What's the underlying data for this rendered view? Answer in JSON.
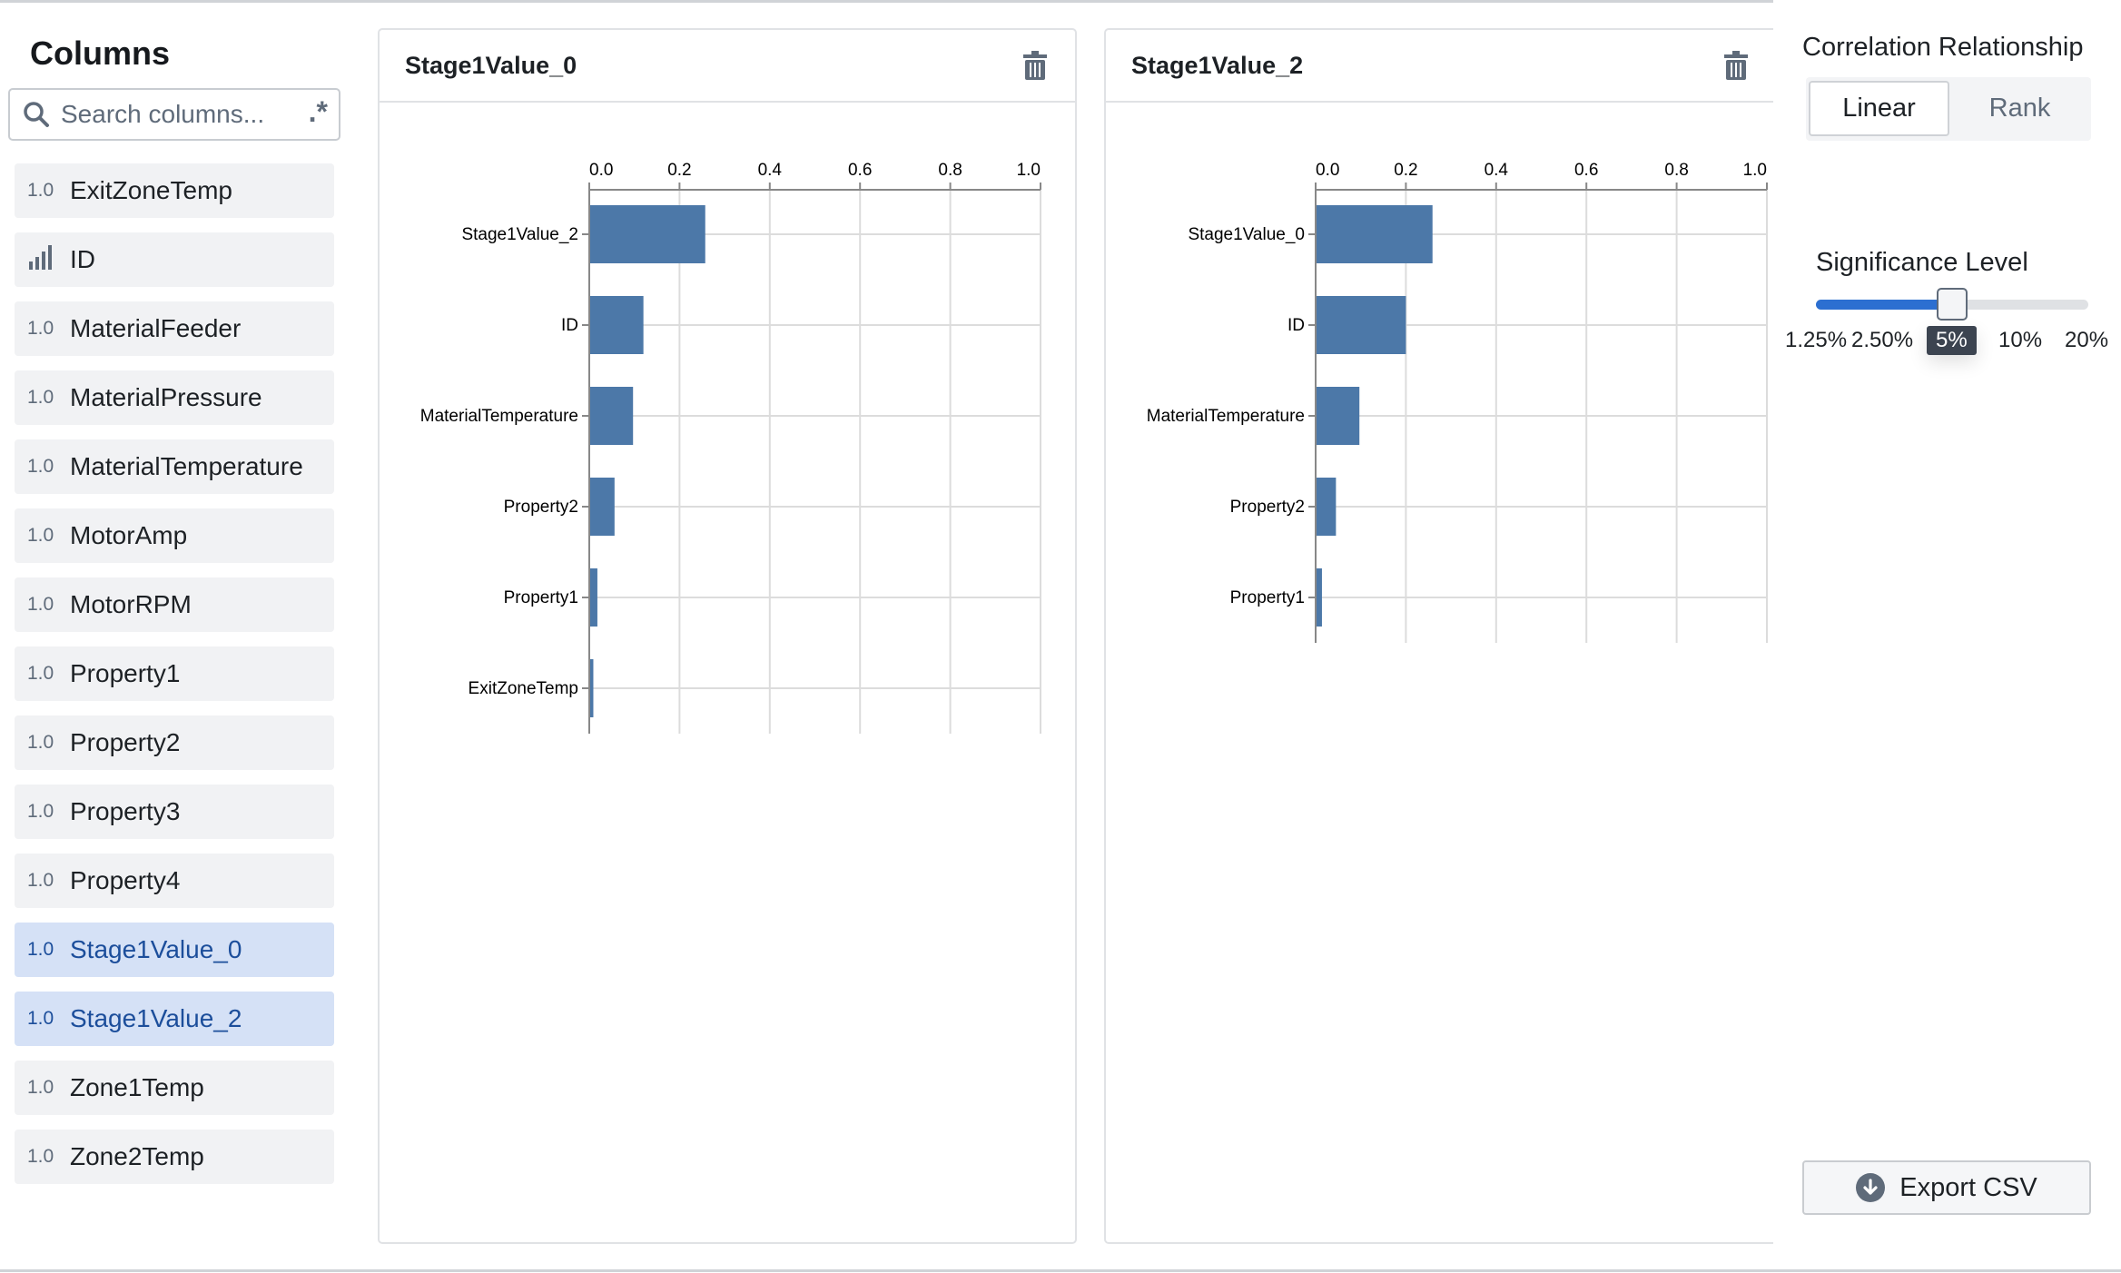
{
  "sidebar": {
    "title": "Columns",
    "search_placeholder": "Search columns...",
    "regex_label": ".*",
    "items": [
      {
        "type": "1.0",
        "name": "ExitZoneTemp",
        "selected": false
      },
      {
        "type": "bar-chart-icon",
        "name": "ID",
        "selected": false
      },
      {
        "type": "1.0",
        "name": "MaterialFeeder",
        "selected": false
      },
      {
        "type": "1.0",
        "name": "MaterialPressure",
        "selected": false
      },
      {
        "type": "1.0",
        "name": "MaterialTemperature",
        "selected": false
      },
      {
        "type": "1.0",
        "name": "MotorAmp",
        "selected": false
      },
      {
        "type": "1.0",
        "name": "MotorRPM",
        "selected": false
      },
      {
        "type": "1.0",
        "name": "Property1",
        "selected": false
      },
      {
        "type": "1.0",
        "name": "Property2",
        "selected": false
      },
      {
        "type": "1.0",
        "name": "Property3",
        "selected": false
      },
      {
        "type": "1.0",
        "name": "Property4",
        "selected": false
      },
      {
        "type": "1.0",
        "name": "Stage1Value_0",
        "selected": true
      },
      {
        "type": "1.0",
        "name": "Stage1Value_2",
        "selected": true
      },
      {
        "type": "1.0",
        "name": "Zone1Temp",
        "selected": false
      },
      {
        "type": "1.0",
        "name": "Zone2Temp",
        "selected": false
      }
    ]
  },
  "panels": [
    {
      "title": "Stage1Value_0"
    },
    {
      "title": "Stage1Value_2"
    }
  ],
  "chart_data": [
    {
      "type": "bar",
      "orientation": "horizontal",
      "categories": [
        "Stage1Value_2",
        "ID",
        "MaterialTemperature",
        "Property2",
        "Property1",
        "ExitZoneTemp"
      ],
      "values": [
        0.257,
        0.12,
        0.097,
        0.056,
        0.018,
        0.009
      ],
      "xlim": [
        0,
        1
      ],
      "xticks": [
        "0.0",
        "0.2",
        "0.4",
        "0.6",
        "0.8",
        "1.0"
      ],
      "grid": true,
      "color": "#4c78a8"
    },
    {
      "type": "bar",
      "orientation": "horizontal",
      "categories": [
        "Stage1Value_0",
        "ID",
        "MaterialTemperature",
        "Property2",
        "Property1"
      ],
      "values": [
        0.259,
        0.2,
        0.097,
        0.045,
        0.014
      ],
      "xlim": [
        0,
        1
      ],
      "xticks": [
        "0.0",
        "0.2",
        "0.4",
        "0.6",
        "0.8",
        "1.0"
      ],
      "grid": true,
      "color": "#4c78a8"
    }
  ],
  "right": {
    "correlation_label": "Correlation Relationship",
    "options": [
      "Linear",
      "Rank"
    ],
    "selected": "Linear",
    "significance_label": "Significance Level",
    "levels": [
      "1.25%",
      "2.50%",
      "5%",
      "10%",
      "20%"
    ],
    "selected_level": "5%",
    "export_label": "Export CSV"
  }
}
